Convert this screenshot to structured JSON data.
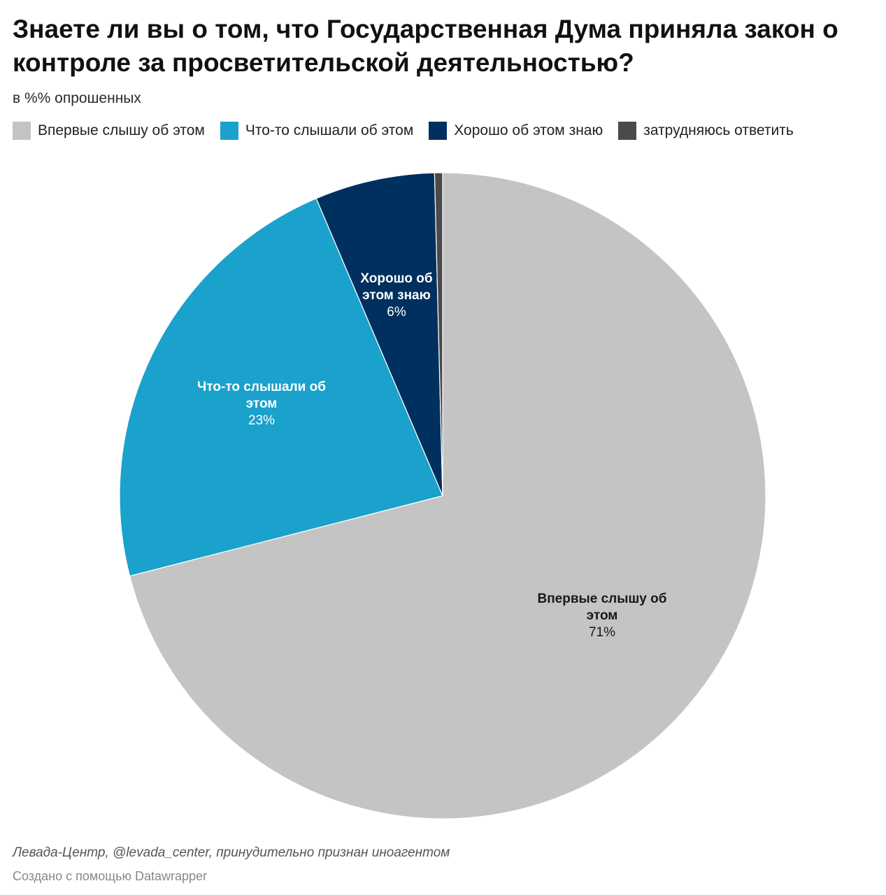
{
  "title": "Знаете ли вы о том, что Государственная Дума приняла закон о контроле за просветительской деятельностью?",
  "subtitle": "в %% опрошенных",
  "source": "Левада-Центр, @levada_center, принудительно признан иноагентом",
  "credit": "Создано с помощью Datawrapper",
  "colors": {
    "first_time": "#c4c4c4",
    "heard_something": "#1aa1cc",
    "know_well": "#00305f",
    "hard_to_say": "#4a4a4a"
  },
  "chart_data": {
    "type": "pie",
    "start": "12 o'clock, clockwise",
    "legend_position": "top-left",
    "slices": [
      {
        "name": "Впервые слышу об этом",
        "value": 71.0,
        "label_lines": [
          "Впервые слышу об",
          "этом"
        ],
        "value_label": "71%",
        "color": "#c4c4c4",
        "label_color": "#181818"
      },
      {
        "name": "Что-то слышали об этом",
        "value": 22.6,
        "label_lines": [
          "Что-то слышали об",
          "этом"
        ],
        "value_label": "23%",
        "color": "#1aa1cc",
        "label_color": "#ffffff"
      },
      {
        "name": "Хорошо об этом знаю",
        "value": 6.0,
        "label_lines": [
          "Хорошо об",
          "этом знаю"
        ],
        "value_label": "6%",
        "color": "#00305f",
        "label_color": "#ffffff"
      },
      {
        "name": "затрудняюсь ответить",
        "value": 0.4,
        "label_lines": [],
        "value_label": "",
        "color": "#4a4a4a",
        "label_color": "#ffffff"
      }
    ]
  }
}
